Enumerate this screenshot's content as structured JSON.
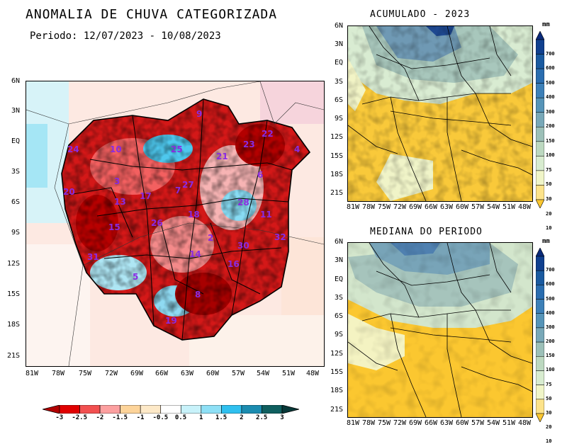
{
  "main_map": {
    "title": "ANOMALIA DE CHUVA CATEGORIZADA",
    "period": "Periodo: 12/07/2023 - 10/08/2023",
    "lat_ticks": [
      "6N",
      "3N",
      "EQ",
      "3S",
      "6S",
      "9S",
      "12S",
      "15S",
      "18S",
      "21S"
    ],
    "lon_ticks": [
      "81W",
      "78W",
      "75W",
      "72W",
      "69W",
      "66W",
      "63W",
      "60W",
      "57W",
      "54W",
      "51W",
      "48W"
    ],
    "basin_labels": [
      "9",
      "22",
      "25",
      "10",
      "23",
      "21",
      "24",
      "4",
      "6",
      "3",
      "7",
      "17",
      "20",
      "13",
      "28",
      "11",
      "18",
      "15",
      "26",
      "2",
      "32",
      "31",
      "30",
      "14",
      "16",
      "5",
      "8",
      "19",
      "27"
    ],
    "colorbar": {
      "labels": [
        "-3",
        "-2.5",
        "-2",
        "-1.5",
        "-1",
        "-0.5",
        "0.5",
        "1",
        "1.5",
        "2",
        "2.5",
        "3"
      ],
      "colors": [
        "#b20000",
        "#e00000",
        "#f25050",
        "#fca0a0",
        "#fdd49a",
        "#fde9c8",
        "#ffffff",
        "#c8f2fa",
        "#8ee0f6",
        "#2fc0ef",
        "#1b8cb0",
        "#0f5f5f",
        "#083838"
      ]
    }
  },
  "acumulado": {
    "title": "ACUMULADO - 2023",
    "unit": "mm",
    "lat_ticks": [
      "6N",
      "3N",
      "EQ",
      "3S",
      "6S",
      "9S",
      "12S",
      "15S",
      "18S",
      "21S"
    ],
    "lon_ticks": [
      "81W",
      "78W",
      "75W",
      "72W",
      "69W",
      "66W",
      "63W",
      "60W",
      "57W",
      "54W",
      "51W",
      "48W"
    ],
    "colorbar_labels": [
      "700",
      "600",
      "500",
      "400",
      "300",
      "200",
      "150",
      "100",
      "75",
      "50",
      "30",
      "20",
      "10"
    ]
  },
  "mediana": {
    "title": "MEDIANA DO PERIODO",
    "unit": "mm",
    "lat_ticks": [
      "6N",
      "3N",
      "EQ",
      "3S",
      "6S",
      "9S",
      "12S",
      "15S",
      "18S",
      "21S"
    ],
    "lon_ticks": [
      "81W",
      "78W",
      "75W",
      "72W",
      "69W",
      "66W",
      "63W",
      "60W",
      "57W",
      "54W",
      "51W",
      "48W"
    ],
    "colorbar_labels": [
      "700",
      "600",
      "500",
      "400",
      "300",
      "200",
      "150",
      "100",
      "75",
      "50",
      "30",
      "20",
      "10"
    ]
  },
  "small_colorbar_colors": [
    "#0a2a7a",
    "#10408f",
    "#1a5aa0",
    "#2a6db0",
    "#3d80b8",
    "#5694b8",
    "#78a8b8",
    "#9cc0b8",
    "#bcd8c0",
    "#d8ecd0",
    "#f0f5c8",
    "#fde38a",
    "#fbc730"
  ]
}
